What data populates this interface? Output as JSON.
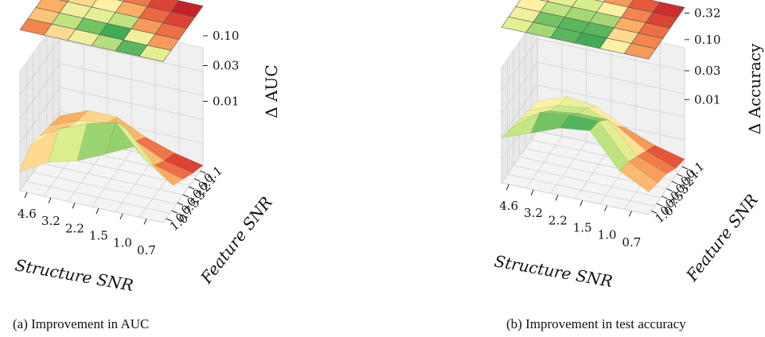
{
  "captions": {
    "a": "(a) Improvement in AUC",
    "b": "(b) Improvement in test accuracy"
  },
  "chart_data": [
    {
      "type": "surface3d",
      "id": "a",
      "x_label": "Structure SNR",
      "y_label": "Feature SNR",
      "z_label": "Δ AUC",
      "x_ticks": [
        "4.6",
        "3.2",
        "2.2",
        "1.5",
        "1.0",
        "0.7"
      ],
      "y_ticks": [
        "0.1",
        "0.1",
        "0.2",
        "0.3",
        "0.5",
        "0.7",
        "1.0"
      ],
      "z_ticks": [
        "0.01",
        "0.03",
        "0.10"
      ],
      "z_scale": "log",
      "grid": true,
      "heatmap_projection": [
        [
          0.25,
          0.45,
          0.55,
          0.72,
          0.9,
          0.6
        ],
        [
          0.4,
          0.7,
          0.85,
          0.95,
          0.55,
          0.3
        ],
        [
          0.35,
          0.55,
          0.6,
          0.7,
          0.3,
          0.2
        ],
        [
          0.3,
          0.45,
          0.5,
          0.35,
          0.18,
          0.1
        ],
        [
          0.25,
          0.4,
          0.4,
          0.22,
          0.1,
          0.02
        ]
      ],
      "surface": [
        [
          0.25,
          0.45,
          0.55,
          0.72,
          0.9,
          0.6
        ],
        [
          0.4,
          0.7,
          0.85,
          0.95,
          0.55,
          0.3
        ],
        [
          0.35,
          0.55,
          0.6,
          0.7,
          0.3,
          0.2
        ],
        [
          0.3,
          0.45,
          0.5,
          0.35,
          0.18,
          0.1
        ],
        [
          0.25,
          0.4,
          0.4,
          0.22,
          0.1,
          0.02
        ]
      ]
    },
    {
      "type": "surface3d",
      "id": "b",
      "x_label": "Structure SNR",
      "y_label": "Feature SNR",
      "z_label": "Δ Accuracy",
      "x_ticks": [
        "4.6",
        "3.2",
        "2.2",
        "1.5",
        "1.0",
        "0.7"
      ],
      "y_ticks": [
        "0.1",
        "0.1",
        "0.2",
        "0.3",
        "0.5",
        "0.7",
        "1.0"
      ],
      "z_ticks": [
        "0.01",
        "0.03",
        "0.10",
        "0.32"
      ],
      "z_scale": "log",
      "grid": true,
      "heatmap_projection": [
        [
          0.6,
          0.75,
          0.9,
          0.95,
          0.5,
          0.3
        ],
        [
          0.55,
          0.85,
          0.9,
          0.9,
          0.45,
          0.25
        ],
        [
          0.5,
          0.7,
          0.75,
          0.75,
          0.35,
          0.2
        ],
        [
          0.45,
          0.6,
          0.65,
          0.5,
          0.25,
          0.1
        ],
        [
          0.4,
          0.55,
          0.5,
          0.3,
          0.15,
          0.05
        ]
      ],
      "surface": [
        [
          0.6,
          0.75,
          0.9,
          0.95,
          0.5,
          0.3
        ],
        [
          0.55,
          0.85,
          0.9,
          0.9,
          0.45,
          0.25
        ],
        [
          0.5,
          0.7,
          0.75,
          0.75,
          0.35,
          0.2
        ],
        [
          0.45,
          0.6,
          0.65,
          0.5,
          0.25,
          0.1
        ],
        [
          0.4,
          0.55,
          0.5,
          0.3,
          0.15,
          0.05
        ]
      ]
    }
  ]
}
